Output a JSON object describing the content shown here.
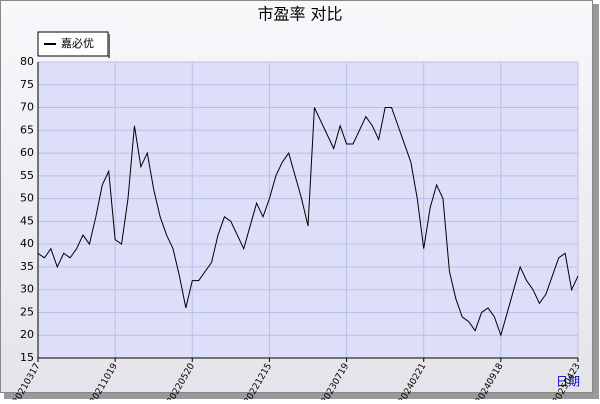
{
  "chart_data": {
    "type": "line",
    "title": "市盈率  对比",
    "x_label": "日期",
    "categories": [
      "20210317",
      null,
      null,
      null,
      null,
      null,
      null,
      null,
      null,
      null,
      null,
      null,
      "20211019",
      null,
      null,
      null,
      null,
      null,
      null,
      null,
      null,
      null,
      null,
      null,
      "20220520",
      null,
      null,
      null,
      null,
      null,
      null,
      null,
      null,
      null,
      null,
      null,
      "20221215",
      null,
      null,
      null,
      null,
      null,
      null,
      null,
      null,
      null,
      null,
      null,
      "20230719",
      null,
      null,
      null,
      null,
      null,
      null,
      null,
      null,
      null,
      null,
      null,
      "20240221",
      null,
      null,
      null,
      null,
      null,
      null,
      null,
      null,
      null,
      null,
      null,
      "20240918",
      null,
      null,
      null,
      null,
      null,
      null,
      null,
      null,
      null,
      null,
      null,
      "20250423"
    ],
    "series": [
      {
        "name": "嘉必优",
        "color": "#000000",
        "values": [
          38,
          37,
          39,
          35,
          38,
          37,
          39,
          42,
          40,
          46,
          53,
          56,
          41,
          40,
          50,
          66,
          57,
          60,
          52,
          46,
          42,
          39,
          33,
          26,
          32,
          32,
          34,
          36,
          42,
          46,
          45,
          42,
          39,
          44,
          49,
          46,
          50,
          55,
          58,
          60,
          55,
          50,
          44,
          70,
          67,
          64,
          61,
          66,
          62,
          62,
          65,
          68,
          66,
          63,
          70,
          70,
          66,
          62,
          58,
          50,
          39,
          48,
          53,
          50,
          34,
          28,
          24,
          23,
          21,
          25,
          26,
          24,
          20,
          25,
          30,
          35,
          32,
          30,
          27,
          29,
          33,
          37,
          38,
          30,
          33
        ]
      }
    ],
    "ylim": [
      15,
      80
    ],
    "yticks": [
      15,
      20,
      25,
      30,
      35,
      40,
      45,
      50,
      55,
      60,
      65,
      70,
      75,
      80
    ],
    "grid": true,
    "legend": "top-left"
  }
}
